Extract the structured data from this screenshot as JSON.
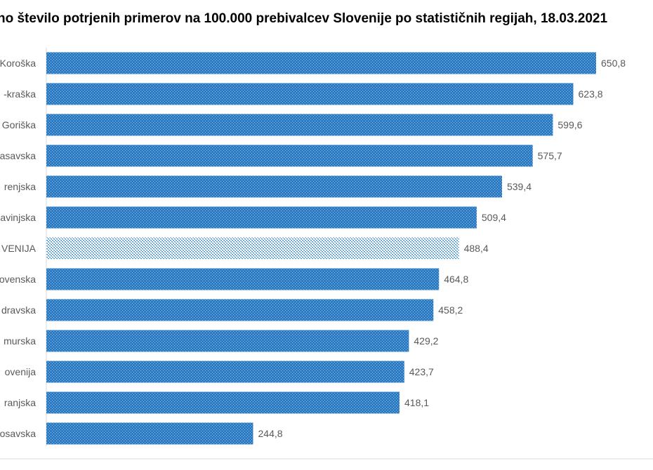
{
  "chart_data": {
    "type": "bar",
    "orientation": "horizontal",
    "title": "no število potrjenih primerov na 100.000 prebivalcev Slovenije po statističnih regijah, 18.03.2021",
    "categories": [
      "Koroška",
      "-kraška",
      "Goriška",
      "asavska",
      "renjska",
      "avinjska",
      "VENIJA",
      "ovenska",
      "dravska",
      "murska",
      "ovenija",
      "ranjska",
      "osavska"
    ],
    "values": [
      650.8,
      623.8,
      599.6,
      575.7,
      539.4,
      509.4,
      488.4,
      464.8,
      458.2,
      429.2,
      423.7,
      418.1,
      244.8
    ],
    "value_labels": [
      "650,8",
      "623,8",
      "599,6",
      "575,7",
      "539,4",
      "509,4",
      "488,4",
      "464,8",
      "458,2",
      "429,2",
      "423,7",
      "418,1",
      "244,8"
    ],
    "highlight_index": 6,
    "xlim": [
      0,
      700
    ],
    "grid": false,
    "legend": "none",
    "colors": {
      "bar": "#2e7bc4",
      "bar_light": "#5aa6e0",
      "highlight": "#3d8fd6",
      "text": "#595959"
    }
  }
}
